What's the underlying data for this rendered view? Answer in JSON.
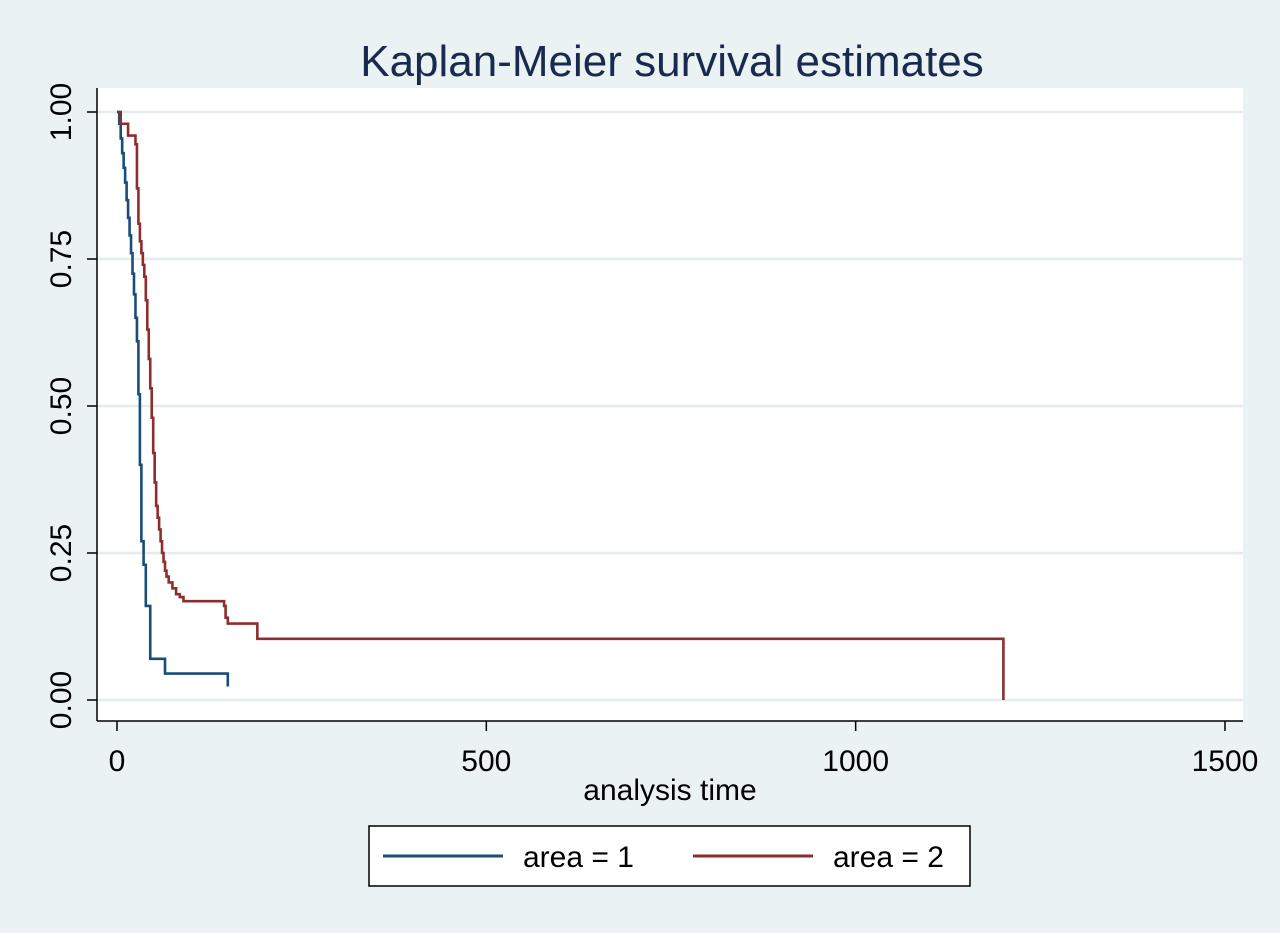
{
  "chart_data": {
    "type": "line",
    "title": "Kaplan-Meier survival estimates",
    "xlabel": "analysis time",
    "ylabel": "",
    "xlim": [
      0,
      1500
    ],
    "ylim": [
      0,
      1
    ],
    "xticks": [
      0,
      500,
      1000,
      1500
    ],
    "xtick_labels": [
      "0",
      "500",
      "1000",
      "1500"
    ],
    "yticks": [
      0,
      0.25,
      0.5,
      0.75,
      1
    ],
    "ytick_labels": [
      "0.00",
      "0.25",
      "0.50",
      "0.75",
      "1.00"
    ],
    "grid": true,
    "legend_position": "bottom",
    "step": true,
    "colors": {
      "outer_background": "#eaf2f3",
      "plot_background": "#ffffff",
      "grid": "#e4ecee",
      "title": "#1a2a4f",
      "text": "#000000"
    },
    "series": [
      {
        "name": "area = 1",
        "color": "#1a4c7a",
        "x": [
          0,
          3,
          5,
          7,
          9,
          11,
          13,
          15,
          17,
          19,
          21,
          23,
          25,
          27,
          29,
          31,
          33,
          36,
          39,
          45,
          65,
          150
        ],
        "y": [
          1.0,
          0.98,
          0.955,
          0.93,
          0.905,
          0.88,
          0.85,
          0.82,
          0.79,
          0.76,
          0.725,
          0.69,
          0.65,
          0.61,
          0.52,
          0.4,
          0.27,
          0.23,
          0.16,
          0.07,
          0.045,
          0.023
        ]
      },
      {
        "name": "area = 2",
        "color": "#8e2d2d",
        "x": [
          0,
          5,
          15,
          25,
          27,
          29,
          31,
          33,
          35,
          37,
          39,
          41,
          43,
          45,
          47,
          49,
          51,
          53,
          55,
          57,
          59,
          61,
          63,
          65,
          67,
          70,
          75,
          80,
          85,
          90,
          145,
          147,
          150,
          190,
          1200
        ],
        "y": [
          1.0,
          0.98,
          0.96,
          0.945,
          0.87,
          0.81,
          0.78,
          0.76,
          0.74,
          0.72,
          0.68,
          0.63,
          0.58,
          0.53,
          0.48,
          0.42,
          0.37,
          0.33,
          0.31,
          0.29,
          0.27,
          0.25,
          0.235,
          0.22,
          0.21,
          0.2,
          0.19,
          0.18,
          0.175,
          0.168,
          0.16,
          0.14,
          0.13,
          0.104,
          0.0
        ]
      }
    ]
  }
}
